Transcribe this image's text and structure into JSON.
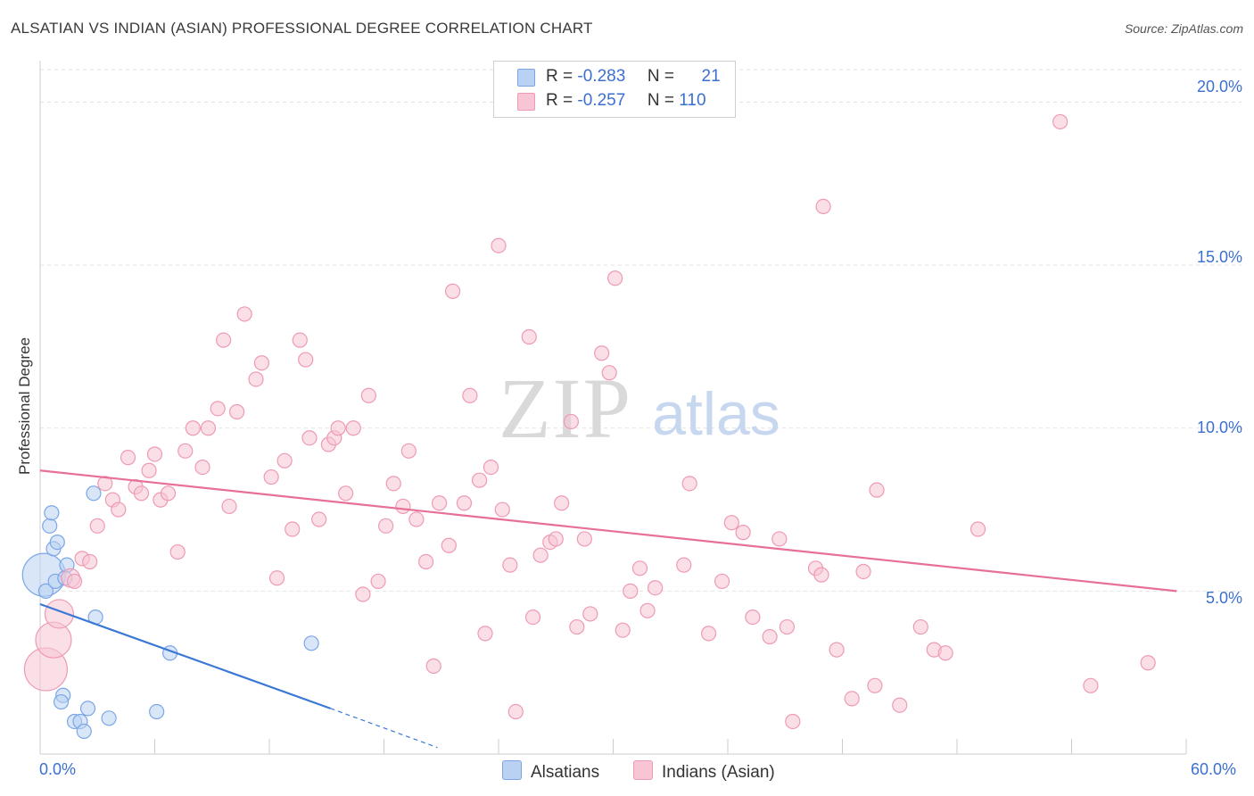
{
  "header": {
    "title": "ALSATIAN VS INDIAN (ASIAN) PROFESSIONAL DEGREE CORRELATION CHART",
    "source": "Source: ZipAtlas.com"
  },
  "legend": {
    "r_label": "R =",
    "n_label": "N =",
    "rows": [
      {
        "r": "-0.283",
        "n": "21"
      },
      {
        "r": "-0.257",
        "n": "110"
      }
    ]
  },
  "colors": {
    "alsatians_fill": "#b9d1f3",
    "alsatians_stroke": "#7aa6e6",
    "alsatians_line": "#3a78d6",
    "indians_fill": "#f8c5d4",
    "indians_stroke": "#ee9ab3",
    "indians_line": "#e76f98",
    "axis_label": "#3b6fd1"
  },
  "chart_data": {
    "type": "scatter",
    "title": "ALSATIAN VS INDIAN (ASIAN) PROFESSIONAL DEGREE CORRELATION CHART",
    "xlabel": "",
    "ylabel": "Professional Degree",
    "xlim": [
      0,
      60
    ],
    "ylim": [
      0,
      21
    ],
    "x_tick_labels": [
      "0.0%",
      "60.0%"
    ],
    "y_ticks": [
      5,
      10,
      15,
      20
    ],
    "y_tick_labels": [
      "5.0%",
      "10.0%",
      "15.0%",
      "20.0%"
    ],
    "grid": true,
    "legend_position": "top-center",
    "watermark": "ZIPatlas",
    "series": [
      {
        "name": "Alsatians",
        "r": -0.283,
        "n": 21,
        "trend": {
          "x0": 0,
          "y0": 4.6,
          "x1": 15.2,
          "y1": 1.4,
          "dashed_to_x": 20.8,
          "dashed_to_y": 0.2
        },
        "points": [
          {
            "x": 0.2,
            "y": 5.5,
            "s": 3
          },
          {
            "x": 0.3,
            "y": 5.0,
            "s": 1
          },
          {
            "x": 0.5,
            "y": 7.0,
            "s": 1
          },
          {
            "x": 0.6,
            "y": 7.4,
            "s": 1
          },
          {
            "x": 0.7,
            "y": 6.3,
            "s": 1
          },
          {
            "x": 0.9,
            "y": 6.5,
            "s": 1
          },
          {
            "x": 0.8,
            "y": 5.3,
            "s": 1
          },
          {
            "x": 1.3,
            "y": 5.4,
            "s": 1
          },
          {
            "x": 1.4,
            "y": 5.8,
            "s": 1
          },
          {
            "x": 2.8,
            "y": 8.0,
            "s": 1
          },
          {
            "x": 2.9,
            "y": 4.2,
            "s": 1
          },
          {
            "x": 6.8,
            "y": 3.1,
            "s": 1
          },
          {
            "x": 14.2,
            "y": 3.4,
            "s": 1
          },
          {
            "x": 1.2,
            "y": 1.8,
            "s": 1
          },
          {
            "x": 1.1,
            "y": 1.6,
            "s": 1
          },
          {
            "x": 2.5,
            "y": 1.4,
            "s": 1
          },
          {
            "x": 3.6,
            "y": 1.1,
            "s": 1
          },
          {
            "x": 6.1,
            "y": 1.3,
            "s": 1
          },
          {
            "x": 1.8,
            "y": 1.0,
            "s": 1
          },
          {
            "x": 2.1,
            "y": 1.0,
            "s": 1
          },
          {
            "x": 2.3,
            "y": 0.7,
            "s": 1
          }
        ]
      },
      {
        "name": "Indians (Asian)",
        "r": -0.257,
        "n": 110,
        "trend": {
          "x0": 0,
          "y0": 8.7,
          "x1": 59.5,
          "y1": 5.0
        },
        "points": [
          {
            "x": 0.3,
            "y": 2.6,
            "s": 3
          },
          {
            "x": 0.7,
            "y": 3.5,
            "s": 2.5
          },
          {
            "x": 1.0,
            "y": 4.3,
            "s": 2
          },
          {
            "x": 1.6,
            "y": 5.4,
            "s": 1.3
          },
          {
            "x": 1.8,
            "y": 5.3,
            "s": 1
          },
          {
            "x": 2.2,
            "y": 6.0,
            "s": 1
          },
          {
            "x": 2.6,
            "y": 5.9,
            "s": 1
          },
          {
            "x": 3.0,
            "y": 7.0,
            "s": 1
          },
          {
            "x": 3.4,
            "y": 8.3,
            "s": 1
          },
          {
            "x": 3.8,
            "y": 7.8,
            "s": 1
          },
          {
            "x": 4.1,
            "y": 7.5,
            "s": 1
          },
          {
            "x": 4.6,
            "y": 9.1,
            "s": 1
          },
          {
            "x": 5.0,
            "y": 8.2,
            "s": 1
          },
          {
            "x": 5.3,
            "y": 8.0,
            "s": 1
          },
          {
            "x": 5.7,
            "y": 8.7,
            "s": 1
          },
          {
            "x": 6.0,
            "y": 9.2,
            "s": 1
          },
          {
            "x": 6.3,
            "y": 7.8,
            "s": 1
          },
          {
            "x": 6.7,
            "y": 8.0,
            "s": 1
          },
          {
            "x": 7.2,
            "y": 6.2,
            "s": 1
          },
          {
            "x": 7.6,
            "y": 9.3,
            "s": 1
          },
          {
            "x": 8.0,
            "y": 10.0,
            "s": 1
          },
          {
            "x": 8.5,
            "y": 8.8,
            "s": 1
          },
          {
            "x": 8.8,
            "y": 10.0,
            "s": 1
          },
          {
            "x": 9.3,
            "y": 10.6,
            "s": 1
          },
          {
            "x": 9.6,
            "y": 12.7,
            "s": 1
          },
          {
            "x": 9.9,
            "y": 7.6,
            "s": 1
          },
          {
            "x": 10.3,
            "y": 10.5,
            "s": 1
          },
          {
            "x": 10.7,
            "y": 13.5,
            "s": 1
          },
          {
            "x": 11.3,
            "y": 11.5,
            "s": 1
          },
          {
            "x": 11.6,
            "y": 12.0,
            "s": 1
          },
          {
            "x": 12.1,
            "y": 8.5,
            "s": 1
          },
          {
            "x": 12.4,
            "y": 5.4,
            "s": 1
          },
          {
            "x": 12.8,
            "y": 9.0,
            "s": 1
          },
          {
            "x": 13.2,
            "y": 6.9,
            "s": 1
          },
          {
            "x": 13.6,
            "y": 12.7,
            "s": 1
          },
          {
            "x": 13.9,
            "y": 12.1,
            "s": 1
          },
          {
            "x": 14.1,
            "y": 9.7,
            "s": 1
          },
          {
            "x": 14.6,
            "y": 7.2,
            "s": 1
          },
          {
            "x": 15.1,
            "y": 9.5,
            "s": 1
          },
          {
            "x": 15.4,
            "y": 9.7,
            "s": 1
          },
          {
            "x": 15.6,
            "y": 10.0,
            "s": 1
          },
          {
            "x": 16.0,
            "y": 8.0,
            "s": 1
          },
          {
            "x": 16.4,
            "y": 10.0,
            "s": 1
          },
          {
            "x": 16.9,
            "y": 4.9,
            "s": 1
          },
          {
            "x": 17.2,
            "y": 11.0,
            "s": 1
          },
          {
            "x": 17.7,
            "y": 5.3,
            "s": 1
          },
          {
            "x": 18.1,
            "y": 7.0,
            "s": 1
          },
          {
            "x": 18.5,
            "y": 8.3,
            "s": 1
          },
          {
            "x": 19.0,
            "y": 7.6,
            "s": 1
          },
          {
            "x": 19.3,
            "y": 9.3,
            "s": 1
          },
          {
            "x": 19.7,
            "y": 7.2,
            "s": 1
          },
          {
            "x": 20.2,
            "y": 5.9,
            "s": 1
          },
          {
            "x": 20.6,
            "y": 2.7,
            "s": 1
          },
          {
            "x": 20.9,
            "y": 7.7,
            "s": 1
          },
          {
            "x": 21.4,
            "y": 6.4,
            "s": 1
          },
          {
            "x": 21.6,
            "y": 14.2,
            "s": 1
          },
          {
            "x": 22.2,
            "y": 7.7,
            "s": 1
          },
          {
            "x": 22.5,
            "y": 11.0,
            "s": 1
          },
          {
            "x": 23.0,
            "y": 8.4,
            "s": 1
          },
          {
            "x": 23.3,
            "y": 3.7,
            "s": 1
          },
          {
            "x": 23.6,
            "y": 8.8,
            "s": 1
          },
          {
            "x": 24.0,
            "y": 15.6,
            "s": 1
          },
          {
            "x": 24.2,
            "y": 7.5,
            "s": 1
          },
          {
            "x": 24.6,
            "y": 5.8,
            "s": 1
          },
          {
            "x": 24.9,
            "y": 1.3,
            "s": 1
          },
          {
            "x": 25.6,
            "y": 12.8,
            "s": 1
          },
          {
            "x": 25.8,
            "y": 4.2,
            "s": 1
          },
          {
            "x": 26.2,
            "y": 6.1,
            "s": 1
          },
          {
            "x": 26.7,
            "y": 6.5,
            "s": 1
          },
          {
            "x": 27.0,
            "y": 6.6,
            "s": 1
          },
          {
            "x": 27.3,
            "y": 7.7,
            "s": 1
          },
          {
            "x": 27.8,
            "y": 10.2,
            "s": 1
          },
          {
            "x": 28.1,
            "y": 3.9,
            "s": 1
          },
          {
            "x": 28.5,
            "y": 6.6,
            "s": 1
          },
          {
            "x": 28.8,
            "y": 4.3,
            "s": 1
          },
          {
            "x": 29.4,
            "y": 12.3,
            "s": 1
          },
          {
            "x": 29.8,
            "y": 11.7,
            "s": 1
          },
          {
            "x": 30.1,
            "y": 14.6,
            "s": 1
          },
          {
            "x": 30.5,
            "y": 3.8,
            "s": 1
          },
          {
            "x": 30.9,
            "y": 5.0,
            "s": 1
          },
          {
            "x": 31.4,
            "y": 5.7,
            "s": 1
          },
          {
            "x": 31.8,
            "y": 4.4,
            "s": 1
          },
          {
            "x": 32.2,
            "y": 5.1,
            "s": 1
          },
          {
            "x": 33.7,
            "y": 5.8,
            "s": 1
          },
          {
            "x": 34.0,
            "y": 8.3,
            "s": 1
          },
          {
            "x": 35.0,
            "y": 3.7,
            "s": 1
          },
          {
            "x": 35.7,
            "y": 5.3,
            "s": 1
          },
          {
            "x": 36.2,
            "y": 7.1,
            "s": 1
          },
          {
            "x": 36.8,
            "y": 6.8,
            "s": 1
          },
          {
            "x": 37.3,
            "y": 4.2,
            "s": 1
          },
          {
            "x": 38.2,
            "y": 3.6,
            "s": 1
          },
          {
            "x": 38.7,
            "y": 6.6,
            "s": 1
          },
          {
            "x": 39.1,
            "y": 3.9,
            "s": 1
          },
          {
            "x": 39.4,
            "y": 1.0,
            "s": 1
          },
          {
            "x": 40.6,
            "y": 5.7,
            "s": 1
          },
          {
            "x": 40.9,
            "y": 5.5,
            "s": 1
          },
          {
            "x": 41.0,
            "y": 16.8,
            "s": 1
          },
          {
            "x": 41.7,
            "y": 3.2,
            "s": 1
          },
          {
            "x": 42.5,
            "y": 1.7,
            "s": 1
          },
          {
            "x": 43.1,
            "y": 5.6,
            "s": 1
          },
          {
            "x": 43.7,
            "y": 2.1,
            "s": 1
          },
          {
            "x": 43.8,
            "y": 8.1,
            "s": 1
          },
          {
            "x": 45.0,
            "y": 1.5,
            "s": 1
          },
          {
            "x": 46.1,
            "y": 3.9,
            "s": 1
          },
          {
            "x": 46.8,
            "y": 3.2,
            "s": 1
          },
          {
            "x": 47.4,
            "y": 3.1,
            "s": 1
          },
          {
            "x": 49.1,
            "y": 6.9,
            "s": 1
          },
          {
            "x": 53.4,
            "y": 19.4,
            "s": 1
          },
          {
            "x": 55.0,
            "y": 2.1,
            "s": 1
          },
          {
            "x": 58.0,
            "y": 2.8,
            "s": 1
          }
        ]
      }
    ]
  },
  "bottom_legend": [
    {
      "label": "Alsatians"
    },
    {
      "label": "Indians (Asian)"
    }
  ],
  "axis_labels": {
    "x_left": "0.0%",
    "x_right": "60.0%",
    "y_title": "Professional Degree"
  },
  "watermark": {
    "zip": "ZIP",
    "atlas": "atlas"
  }
}
